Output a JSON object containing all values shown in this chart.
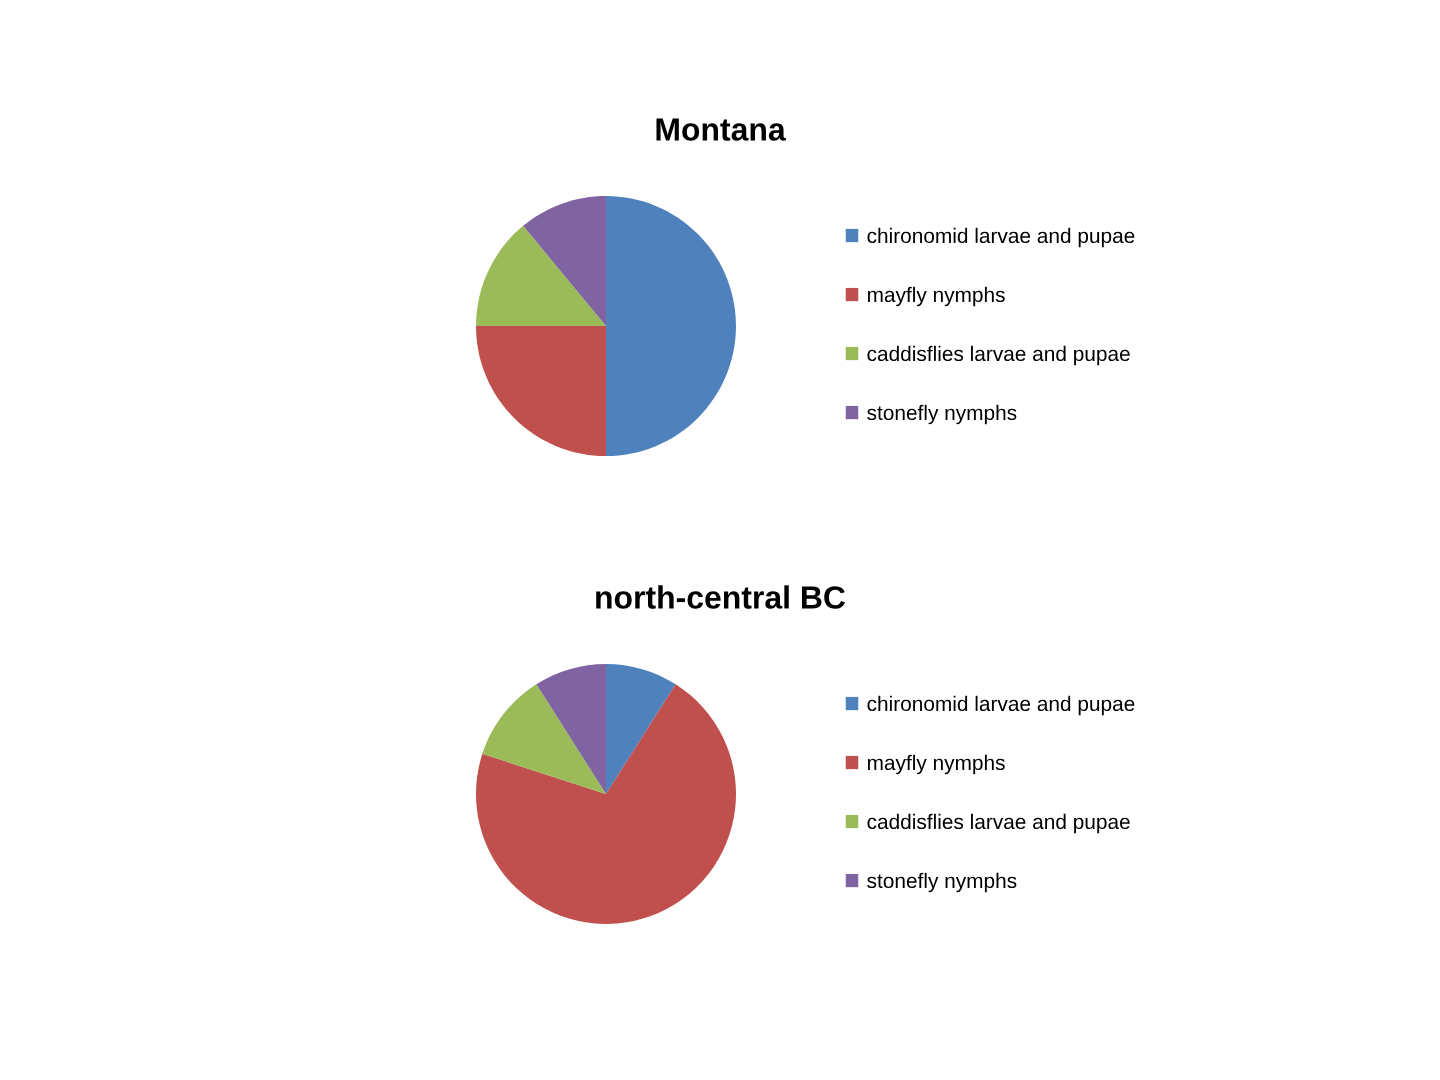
{
  "chart_data": [
    {
      "type": "pie",
      "title": "Montana",
      "categories": [
        "chironomid larvae and pupae",
        "mayfly nymphs",
        "caddisflies larvae and pupae",
        "stonefly nymphs"
      ],
      "values": [
        50,
        25,
        14,
        11
      ],
      "colors": [
        "#4f81bd",
        "#c0504d",
        "#9bbb59",
        "#8064a2"
      ],
      "legend": "right"
    },
    {
      "type": "pie",
      "title": "north-central BC",
      "categories": [
        "chironomid larvae and pupae",
        "mayfly nymphs",
        "caddisflies larvae and pupae",
        "stonefly nymphs"
      ],
      "values": [
        9,
        71,
        11,
        9
      ],
      "colors": [
        "#4f81bd",
        "#c0504d",
        "#9bbb59",
        "#8064a2"
      ],
      "legend": "right"
    }
  ]
}
